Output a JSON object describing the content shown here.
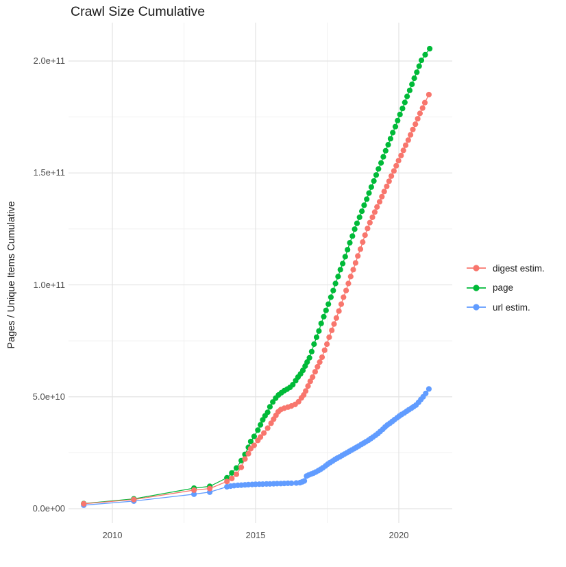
{
  "chart_data": {
    "type": "line",
    "subtype": "line-with-points",
    "title": "Crawl Size Cumulative",
    "xlabel": "",
    "ylabel": "Pages / Unique Items Cumulative",
    "grid": true,
    "legend_position": "right",
    "x_range": [
      2008.4,
      2021.75
    ],
    "y_range": [
      0,
      210000000000.0
    ],
    "x_ticks": [
      {
        "value": 2010,
        "label": "2010"
      },
      {
        "value": 2015,
        "label": "2015"
      },
      {
        "value": 2020,
        "label": "2020"
      }
    ],
    "x_minor_gridlines": [
      2012.5,
      2017.5
    ],
    "y_ticks": [
      {
        "value": 0,
        "label": "0.0e+00"
      },
      {
        "value": 50000000000.0,
        "label": "5.0e+10"
      },
      {
        "value": 100000000000.0,
        "label": "1.0e+11"
      },
      {
        "value": 150000000000.0,
        "label": "1.5e+11"
      },
      {
        "value": 200000000000.0,
        "label": "2.0e+11"
      }
    ],
    "y_minor_gridlines": [
      25000000000.0,
      75000000000.0,
      125000000000.0,
      175000000000.0
    ],
    "colors": {
      "digest_estim": "#F8766D",
      "page": "#00BA38",
      "url_estim": "#619CFF",
      "major_grid": "#e3e3e3",
      "minor_grid": "#f0f0f0"
    },
    "draw_order": [
      2,
      1,
      0
    ],
    "series": [
      {
        "name": "digest estim.",
        "color": "#F8766D",
        "points": [
          [
            2009.0,
            2200000000.0
          ],
          [
            2010.75,
            4100000000.0
          ],
          [
            2012.85,
            8300000000.0
          ],
          [
            2013.4,
            9000000000.0
          ],
          [
            2014.0,
            12200000000.0
          ],
          [
            2014.17,
            13500000000.0
          ],
          [
            2014.33,
            15400000000.0
          ],
          [
            2014.5,
            18500000000.0
          ],
          [
            2014.63,
            22200000000.0
          ],
          [
            2014.75,
            24600000000.0
          ],
          [
            2014.83,
            26800000000.0
          ],
          [
            2014.95,
            28300000000.0
          ],
          [
            2015.08,
            30500000000.0
          ],
          [
            2015.17,
            32000000000.0
          ],
          [
            2015.29,
            33800000000.0
          ],
          [
            2015.42,
            36000000000.0
          ],
          [
            2015.54,
            38200000000.0
          ],
          [
            2015.63,
            40000000000.0
          ],
          [
            2015.71,
            41700000000.0
          ],
          [
            2015.79,
            43300000000.0
          ],
          [
            2015.88,
            44300000000.0
          ],
          [
            2016.0,
            44900000000.0
          ],
          [
            2016.13,
            45400000000.0
          ],
          [
            2016.25,
            45900000000.0
          ],
          [
            2016.38,
            46600000000.0
          ],
          [
            2016.5,
            47800000000.0
          ],
          [
            2016.6,
            49500000000.0
          ],
          [
            2016.68,
            50800000000.0
          ],
          [
            2016.75,
            52600000000.0
          ],
          [
            2016.83,
            54800000000.0
          ],
          [
            2016.91,
            56900000000.0
          ],
          [
            2016.99,
            58800000000.0
          ],
          [
            2017.08,
            61200000000.0
          ],
          [
            2017.16,
            63400000000.0
          ],
          [
            2017.24,
            65500000000.0
          ],
          [
            2017.32,
            67700000000.0
          ],
          [
            2017.41,
            70800000000.0
          ],
          [
            2017.49,
            73500000000.0
          ],
          [
            2017.57,
            76600000000.0
          ],
          [
            2017.66,
            79700000000.0
          ],
          [
            2017.74,
            82500000000.0
          ],
          [
            2017.82,
            85200000000.0
          ],
          [
            2017.91,
            88300000000.0
          ],
          [
            2017.99,
            91400000000.0
          ],
          [
            2018.07,
            94500000000.0
          ],
          [
            2018.16,
            97500000000.0
          ],
          [
            2018.24,
            100600000000.0
          ],
          [
            2018.32,
            103700000000.0
          ],
          [
            2018.41,
            106800000000.0
          ],
          [
            2018.49,
            109800000000.0
          ],
          [
            2018.57,
            112900000000.0
          ],
          [
            2018.66,
            116000000000.0
          ],
          [
            2018.74,
            119100000000.0
          ],
          [
            2018.82,
            122200000000.0
          ],
          [
            2018.91,
            125200000000.0
          ],
          [
            2018.99,
            127800000000.0
          ],
          [
            2019.08,
            130200000000.0
          ],
          [
            2019.16,
            132500000000.0
          ],
          [
            2019.24,
            134800000000.0
          ],
          [
            2019.33,
            137100000000.0
          ],
          [
            2019.41,
            139400000000.0
          ],
          [
            2019.49,
            141700000000.0
          ],
          [
            2019.58,
            144000000000.0
          ],
          [
            2019.66,
            146300000000.0
          ],
          [
            2019.74,
            148600000000.0
          ],
          [
            2019.83,
            150900000000.0
          ],
          [
            2019.91,
            153200000000.0
          ],
          [
            2019.99,
            155500000000.0
          ],
          [
            2020.08,
            157800000000.0
          ],
          [
            2020.16,
            160100000000.0
          ],
          [
            2020.24,
            162400000000.0
          ],
          [
            2020.33,
            164700000000.0
          ],
          [
            2020.41,
            167000000000.0
          ],
          [
            2020.49,
            169400000000.0
          ],
          [
            2020.58,
            171800000000.0
          ],
          [
            2020.66,
            174200000000.0
          ],
          [
            2020.74,
            176600000000.0
          ],
          [
            2020.83,
            179000000000.0
          ],
          [
            2020.91,
            181400000000.0
          ],
          [
            2021.05,
            185000000000.0
          ]
        ]
      },
      {
        "name": "page",
        "color": "#00BA38",
        "points": [
          [
            2009.0,
            2300000000.0
          ],
          [
            2010.75,
            4400000000.0
          ],
          [
            2012.85,
            9200000000.0
          ],
          [
            2013.4,
            10000000000.0
          ],
          [
            2014.0,
            13800000000.0
          ],
          [
            2014.17,
            16000000000.0
          ],
          [
            2014.33,
            18200000000.0
          ],
          [
            2014.5,
            21500000000.0
          ],
          [
            2014.63,
            24300000000.0
          ],
          [
            2014.75,
            27400000000.0
          ],
          [
            2014.83,
            30000000000.0
          ],
          [
            2014.95,
            32300000000.0
          ],
          [
            2015.08,
            35100000000.0
          ],
          [
            2015.17,
            37500000000.0
          ],
          [
            2015.25,
            39700000000.0
          ],
          [
            2015.33,
            41500000000.0
          ],
          [
            2015.42,
            43100000000.0
          ],
          [
            2015.5,
            45500000000.0
          ],
          [
            2015.6,
            47700000000.0
          ],
          [
            2015.7,
            49400000000.0
          ],
          [
            2015.8,
            50800000000.0
          ],
          [
            2015.9,
            51800000000.0
          ],
          [
            2016.0,
            52700000000.0
          ],
          [
            2016.1,
            53400000000.0
          ],
          [
            2016.2,
            54200000000.0
          ],
          [
            2016.3,
            55400000000.0
          ],
          [
            2016.4,
            57200000000.0
          ],
          [
            2016.48,
            58800000000.0
          ],
          [
            2016.57,
            60200000000.0
          ],
          [
            2016.65,
            61800000000.0
          ],
          [
            2016.73,
            63700000000.0
          ],
          [
            2016.8,
            65500000000.0
          ],
          [
            2016.88,
            67400000000.0
          ],
          [
            2016.96,
            70200000000.0
          ],
          [
            2017.04,
            73500000000.0
          ],
          [
            2017.13,
            76600000000.0
          ],
          [
            2017.21,
            79400000000.0
          ],
          [
            2017.29,
            82800000000.0
          ],
          [
            2017.38,
            85800000000.0
          ],
          [
            2017.46,
            88600000000.0
          ],
          [
            2017.54,
            91400000000.0
          ],
          [
            2017.63,
            94500000000.0
          ],
          [
            2017.71,
            97500000000.0
          ],
          [
            2017.79,
            100600000000.0
          ],
          [
            2017.88,
            103700000000.0
          ],
          [
            2017.96,
            106800000000.0
          ],
          [
            2018.04,
            109500000000.0
          ],
          [
            2018.13,
            112600000000.0
          ],
          [
            2018.21,
            115700000000.0
          ],
          [
            2018.29,
            118800000000.0
          ],
          [
            2018.38,
            121800000000.0
          ],
          [
            2018.46,
            124900000000.0
          ],
          [
            2018.54,
            127500000000.0
          ],
          [
            2018.63,
            130200000000.0
          ],
          [
            2018.71,
            132900000000.0
          ],
          [
            2018.79,
            135600000000.0
          ],
          [
            2018.88,
            138300000000.0
          ],
          [
            2018.96,
            141000000000.0
          ],
          [
            2019.04,
            143700000000.0
          ],
          [
            2019.13,
            146400000000.0
          ],
          [
            2019.21,
            149100000000.0
          ],
          [
            2019.29,
            151800000000.0
          ],
          [
            2019.38,
            154500000000.0
          ],
          [
            2019.46,
            157200000000.0
          ],
          [
            2019.54,
            159900000000.0
          ],
          [
            2019.63,
            162600000000.0
          ],
          [
            2019.71,
            165300000000.0
          ],
          [
            2019.79,
            168000000000.0
          ],
          [
            2019.88,
            170700000000.0
          ],
          [
            2019.96,
            173400000000.0
          ],
          [
            2020.04,
            176100000000.0
          ],
          [
            2020.13,
            178800000000.0
          ],
          [
            2020.21,
            181500000000.0
          ],
          [
            2020.29,
            184200000000.0
          ],
          [
            2020.38,
            186900000000.0
          ],
          [
            2020.46,
            189600000000.0
          ],
          [
            2020.54,
            192300000000.0
          ],
          [
            2020.63,
            195000000000.0
          ],
          [
            2020.71,
            197700000000.0
          ],
          [
            2020.79,
            200300000000.0
          ],
          [
            2020.92,
            202800000000.0
          ],
          [
            2021.08,
            205500000000.0
          ]
        ]
      },
      {
        "name": "url estim.",
        "color": "#619CFF",
        "points": [
          [
            2009.0,
            1600000000.0
          ],
          [
            2010.75,
            3400000000.0
          ],
          [
            2012.85,
            6500000000.0
          ],
          [
            2013.4,
            7400000000.0
          ],
          [
            2014.0,
            9800000000.0
          ],
          [
            2014.13,
            10100000000.0
          ],
          [
            2014.25,
            10300000000.0
          ],
          [
            2014.38,
            10450000000.0
          ],
          [
            2014.5,
            10550000000.0
          ],
          [
            2014.63,
            10650000000.0
          ],
          [
            2014.75,
            10750000000.0
          ],
          [
            2014.88,
            10850000000.0
          ],
          [
            2015.0,
            10900000000.0
          ],
          [
            2015.13,
            10950000000.0
          ],
          [
            2015.25,
            11000000000.0
          ],
          [
            2015.38,
            11050000000.0
          ],
          [
            2015.5,
            11100000000.0
          ],
          [
            2015.63,
            11150000000.0
          ],
          [
            2015.75,
            11200000000.0
          ],
          [
            2015.88,
            11250000000.0
          ],
          [
            2016.0,
            11300000000.0
          ],
          [
            2016.13,
            11350000000.0
          ],
          [
            2016.25,
            11400000000.0
          ],
          [
            2016.42,
            11500000000.0
          ],
          [
            2016.55,
            11650000000.0
          ],
          [
            2016.63,
            12000000000.0
          ],
          [
            2016.7,
            12400000000.0
          ],
          [
            2016.78,
            14600000000.0
          ],
          [
            2016.86,
            15100000000.0
          ],
          [
            2016.94,
            15500000000.0
          ],
          [
            2017.02,
            15900000000.0
          ],
          [
            2017.1,
            16400000000.0
          ],
          [
            2017.19,
            17000000000.0
          ],
          [
            2017.27,
            17600000000.0
          ],
          [
            2017.35,
            18300000000.0
          ],
          [
            2017.44,
            19100000000.0
          ],
          [
            2017.52,
            19900000000.0
          ],
          [
            2017.6,
            20600000000.0
          ],
          [
            2017.69,
            21300000000.0
          ],
          [
            2017.77,
            22000000000.0
          ],
          [
            2017.85,
            22600000000.0
          ],
          [
            2017.94,
            23200000000.0
          ],
          [
            2018.02,
            23800000000.0
          ],
          [
            2018.1,
            24400000000.0
          ],
          [
            2018.19,
            25000000000.0
          ],
          [
            2018.27,
            25600000000.0
          ],
          [
            2018.35,
            26200000000.0
          ],
          [
            2018.44,
            26800000000.0
          ],
          [
            2018.52,
            27400000000.0
          ],
          [
            2018.6,
            28000000000.0
          ],
          [
            2018.69,
            28700000000.0
          ],
          [
            2018.77,
            29300000000.0
          ],
          [
            2018.85,
            29900000000.0
          ],
          [
            2018.94,
            30600000000.0
          ],
          [
            2019.02,
            31300000000.0
          ],
          [
            2019.1,
            32000000000.0
          ],
          [
            2019.19,
            32800000000.0
          ],
          [
            2019.27,
            33600000000.0
          ],
          [
            2019.35,
            34500000000.0
          ],
          [
            2019.44,
            35500000000.0
          ],
          [
            2019.52,
            36500000000.0
          ],
          [
            2019.6,
            37400000000.0
          ],
          [
            2019.69,
            38200000000.0
          ],
          [
            2019.77,
            39000000000.0
          ],
          [
            2019.85,
            39800000000.0
          ],
          [
            2019.94,
            40600000000.0
          ],
          [
            2020.02,
            41400000000.0
          ],
          [
            2020.1,
            42100000000.0
          ],
          [
            2020.19,
            42800000000.0
          ],
          [
            2020.27,
            43500000000.0
          ],
          [
            2020.35,
            44200000000.0
          ],
          [
            2020.44,
            44900000000.0
          ],
          [
            2020.52,
            45600000000.0
          ],
          [
            2020.6,
            46300000000.0
          ],
          [
            2020.69,
            47500000000.0
          ],
          [
            2020.77,
            48800000000.0
          ],
          [
            2020.85,
            50000000000.0
          ],
          [
            2020.94,
            51500000000.0
          ],
          [
            2021.05,
            53500000000.0
          ]
        ]
      }
    ]
  }
}
